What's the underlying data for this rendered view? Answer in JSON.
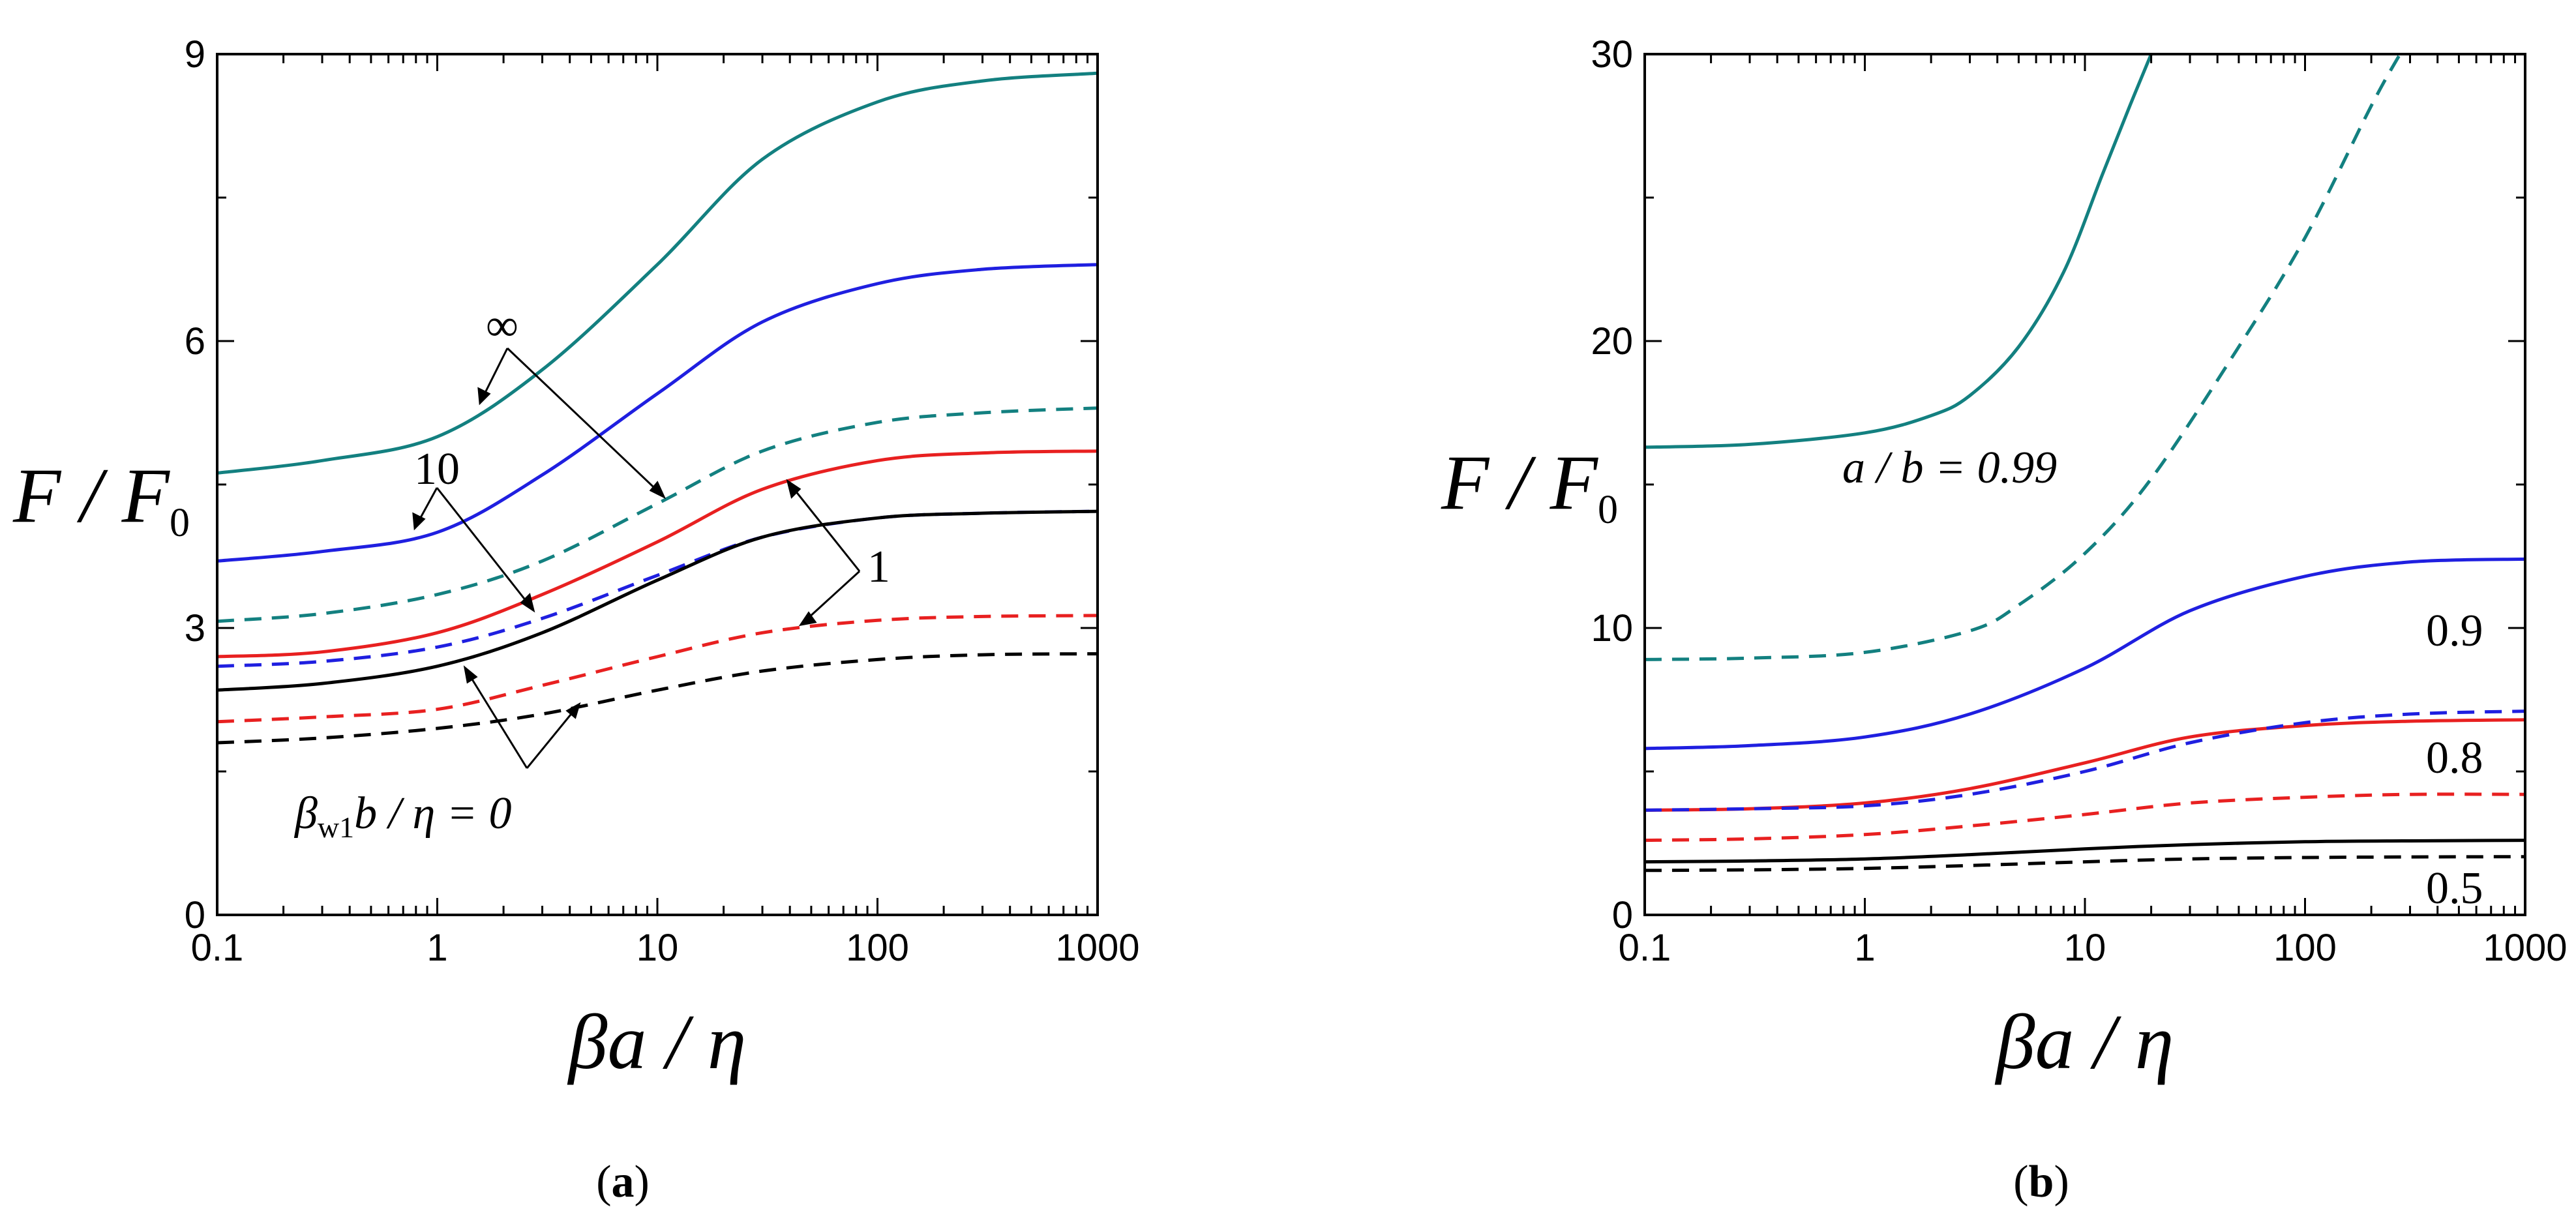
{
  "chart_data": [
    {
      "type": "line",
      "panel_label": "(a)",
      "panel_letter": "a",
      "xscale": "log",
      "xlim": [
        0.1,
        1000
      ],
      "ylim": [
        0,
        9
      ],
      "xticks": [
        0.1,
        1,
        10,
        100,
        1000
      ],
      "xtick_labels": [
        "0.1",
        "1",
        "10",
        "100",
        "1000"
      ],
      "yticks": [
        0,
        3,
        6,
        9
      ],
      "ytick_labels": [
        "0",
        "3",
        "6",
        "9"
      ],
      "xlabel": "βa / η",
      "ylabel": "F / F0",
      "series": [
        {
          "name": "∞ solid",
          "color": "#138080",
          "dash": "solid",
          "x": [
            0.1,
            0.3,
            1,
            3,
            10,
            30,
            100,
            300,
            1000
          ],
          "y": [
            4.62,
            4.75,
            5.0,
            5.7,
            6.8,
            7.9,
            8.5,
            8.72,
            8.8
          ]
        },
        {
          "name": "∞ dashed",
          "color": "#138080",
          "dash": "dashed",
          "x": [
            0.1,
            0.3,
            1,
            3,
            10,
            30,
            100,
            300,
            1000
          ],
          "y": [
            3.07,
            3.15,
            3.35,
            3.7,
            4.3,
            4.85,
            5.15,
            5.25,
            5.3
          ]
        },
        {
          "name": "10 solid",
          "color": "#1f1fe0",
          "dash": "solid",
          "x": [
            0.1,
            0.3,
            1,
            3,
            10,
            30,
            100,
            300,
            1000
          ],
          "y": [
            3.7,
            3.8,
            4.0,
            4.6,
            5.45,
            6.2,
            6.6,
            6.75,
            6.8
          ]
        },
        {
          "name": "10 dashed",
          "color": "#1f1fe0",
          "dash": "dashed",
          "x": [
            0.1,
            0.3,
            1,
            3,
            10,
            30,
            100,
            300,
            1000
          ],
          "y": [
            2.6,
            2.65,
            2.8,
            3.1,
            3.55,
            3.95,
            4.15,
            4.2,
            4.22
          ]
        },
        {
          "name": "1 solid",
          "color": "#e82020",
          "dash": "solid",
          "x": [
            0.1,
            0.3,
            1,
            3,
            10,
            30,
            100,
            300,
            1000
          ],
          "y": [
            2.7,
            2.75,
            2.95,
            3.35,
            3.9,
            4.45,
            4.75,
            4.83,
            4.85
          ]
        },
        {
          "name": "1 dashed",
          "color": "#e82020",
          "dash": "dashed",
          "x": [
            0.1,
            0.3,
            1,
            3,
            10,
            30,
            100,
            300,
            1000
          ],
          "y": [
            2.02,
            2.07,
            2.15,
            2.4,
            2.7,
            2.95,
            3.08,
            3.12,
            3.13
          ]
        },
        {
          "name": "0 solid",
          "color": "#000000",
          "dash": "solid",
          "x": [
            0.1,
            0.3,
            1,
            3,
            10,
            30,
            100,
            300,
            1000
          ],
          "y": [
            2.35,
            2.42,
            2.6,
            2.95,
            3.5,
            3.95,
            4.15,
            4.2,
            4.22
          ]
        },
        {
          "name": "0 dashed",
          "color": "#000000",
          "dash": "dashed",
          "x": [
            0.1,
            0.3,
            1,
            3,
            10,
            30,
            100,
            300,
            1000
          ],
          "y": [
            1.8,
            1.85,
            1.95,
            2.1,
            2.35,
            2.55,
            2.67,
            2.72,
            2.73
          ]
        }
      ],
      "annotations": [
        {
          "text": "∞",
          "x": 2.1,
          "y": 6.05
        },
        {
          "text": "10",
          "x": 1.0,
          "y": 4.5
        },
        {
          "text": "1",
          "x": 180,
          "y": 3.55
        }
      ],
      "annotation_label": {
        "prefix": "β",
        "subscript": "w1",
        "suffix": "b / η = 0",
        "x": 0.25,
        "y": 1.0
      }
    },
    {
      "type": "line",
      "panel_label": "(b)",
      "panel_letter": "b",
      "xscale": "log",
      "xlim": [
        0.1,
        1000
      ],
      "ylim": [
        0,
        30
      ],
      "xticks": [
        0.1,
        1,
        10,
        100,
        1000
      ],
      "xtick_labels": [
        "0.1",
        "1",
        "10",
        "100",
        "1000"
      ],
      "yticks": [
        0,
        10,
        20,
        30
      ],
      "ytick_labels": [
        "0",
        "10",
        "20",
        "30"
      ],
      "xlabel": "βa / η",
      "ylabel": "F / F0",
      "series": [
        {
          "name": "0.99 solid",
          "color": "#138080",
          "dash": "solid",
          "x": [
            0.1,
            0.3,
            1,
            2,
            3,
            5,
            8,
            12,
            16,
            20
          ],
          "y": [
            16.3,
            16.4,
            16.8,
            17.4,
            18.1,
            19.8,
            22.4,
            25.8,
            28.2,
            30.0
          ]
        },
        {
          "name": "0.99 dashed",
          "color": "#138080",
          "dash": "dashed",
          "x": [
            0.1,
            0.3,
            1,
            3,
            5,
            10,
            20,
            50,
            100,
            200,
            270
          ],
          "y": [
            8.9,
            8.95,
            9.15,
            9.9,
            10.8,
            12.6,
            15.2,
            19.8,
            23.6,
            28.2,
            30.0
          ]
        },
        {
          "name": "0.9 solid",
          "color": "#1f1fe0",
          "dash": "solid",
          "x": [
            0.1,
            0.3,
            1,
            3,
            10,
            30,
            100,
            300,
            1000
          ],
          "y": [
            5.8,
            5.9,
            6.2,
            7.0,
            8.6,
            10.6,
            11.8,
            12.3,
            12.4
          ]
        },
        {
          "name": "0.8 solid",
          "color": "#e82020",
          "dash": "solid",
          "x": [
            0.1,
            0.3,
            1,
            3,
            10,
            30,
            100,
            300,
            1000
          ],
          "y": [
            3.65,
            3.7,
            3.9,
            4.4,
            5.3,
            6.2,
            6.6,
            6.75,
            6.8
          ]
        },
        {
          "name": "0.8 dashed",
          "color": "#1f1fe0",
          "dash": "dashed",
          "x": [
            0.1,
            0.3,
            1,
            3,
            10,
            30,
            100,
            300,
            1000
          ],
          "y": [
            3.65,
            3.7,
            3.8,
            4.2,
            5.0,
            6.0,
            6.7,
            7.0,
            7.1
          ]
        },
        {
          "name": "0.5 dashed red",
          "color": "#e82020",
          "dash": "dashed",
          "x": [
            0.1,
            0.3,
            1,
            3,
            10,
            30,
            100,
            300,
            1000
          ],
          "y": [
            2.6,
            2.65,
            2.8,
            3.1,
            3.5,
            3.9,
            4.1,
            4.2,
            4.2
          ]
        },
        {
          "name": "0.5 solid",
          "color": "#000000",
          "dash": "solid",
          "x": [
            0.1,
            0.3,
            1,
            3,
            10,
            30,
            100,
            300,
            1000
          ],
          "y": [
            1.85,
            1.88,
            1.95,
            2.1,
            2.3,
            2.45,
            2.55,
            2.58,
            2.6
          ]
        },
        {
          "name": "0.5 dashed",
          "color": "#000000",
          "dash": "dashed",
          "x": [
            0.1,
            0.3,
            1,
            3,
            10,
            30,
            100,
            300,
            1000
          ],
          "y": [
            1.55,
            1.57,
            1.62,
            1.72,
            1.85,
            1.95,
            2.0,
            2.02,
            2.03
          ]
        }
      ],
      "annotations": [
        {
          "text": "a / b = 0.99",
          "x": 2.7,
          "y": 15.2
        },
        {
          "text": "0.9",
          "x": 400,
          "y": 9.6
        },
        {
          "text": "0.8",
          "x": 400,
          "y": 5.2
        },
        {
          "text": "0.5",
          "x": 400,
          "y": 0.8
        }
      ]
    }
  ]
}
